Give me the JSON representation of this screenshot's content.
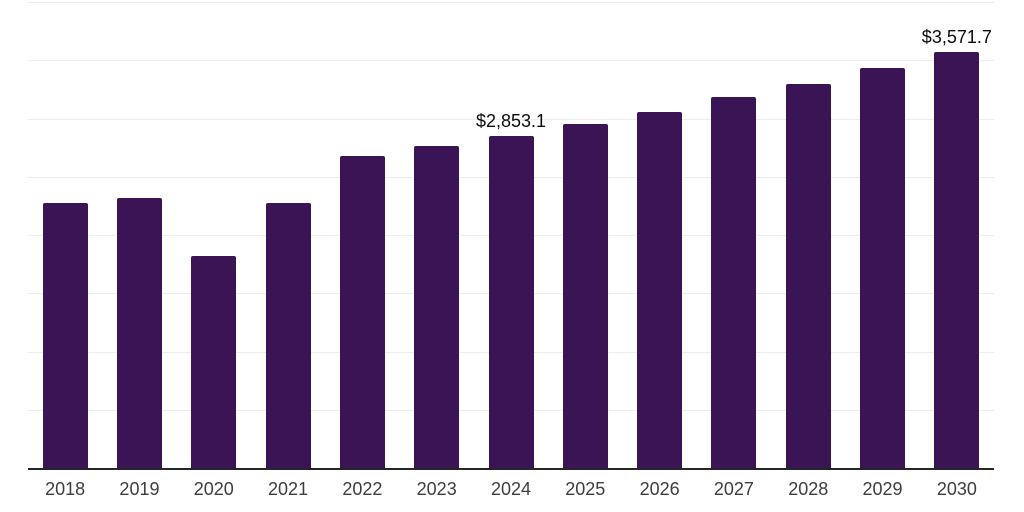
{
  "chart_data": {
    "type": "bar",
    "title": "",
    "xlabel": "",
    "ylabel": "",
    "categories": [
      "2018",
      "2019",
      "2020",
      "2021",
      "2022",
      "2023",
      "2024",
      "2025",
      "2026",
      "2027",
      "2028",
      "2029",
      "2030"
    ],
    "values": [
      2271,
      2320,
      1818,
      2271,
      2680,
      2766,
      2853.1,
      2952,
      3058,
      3181,
      3296,
      3430,
      3571.7
    ],
    "value_labels": {
      "2024": "$2,853.1",
      "2030": "$3,571.7"
    },
    "ylim": [
      0,
      4000
    ],
    "gridline_step": 500,
    "grid": "horizontal",
    "legend_position": "none",
    "colors": {
      "bar": "#3a1454",
      "axis_line": "#262626",
      "gridline": "#ededed",
      "x_tick_label": "#3d3d3d",
      "value_label": "#0c0c0c",
      "background": "#ffffff"
    }
  }
}
